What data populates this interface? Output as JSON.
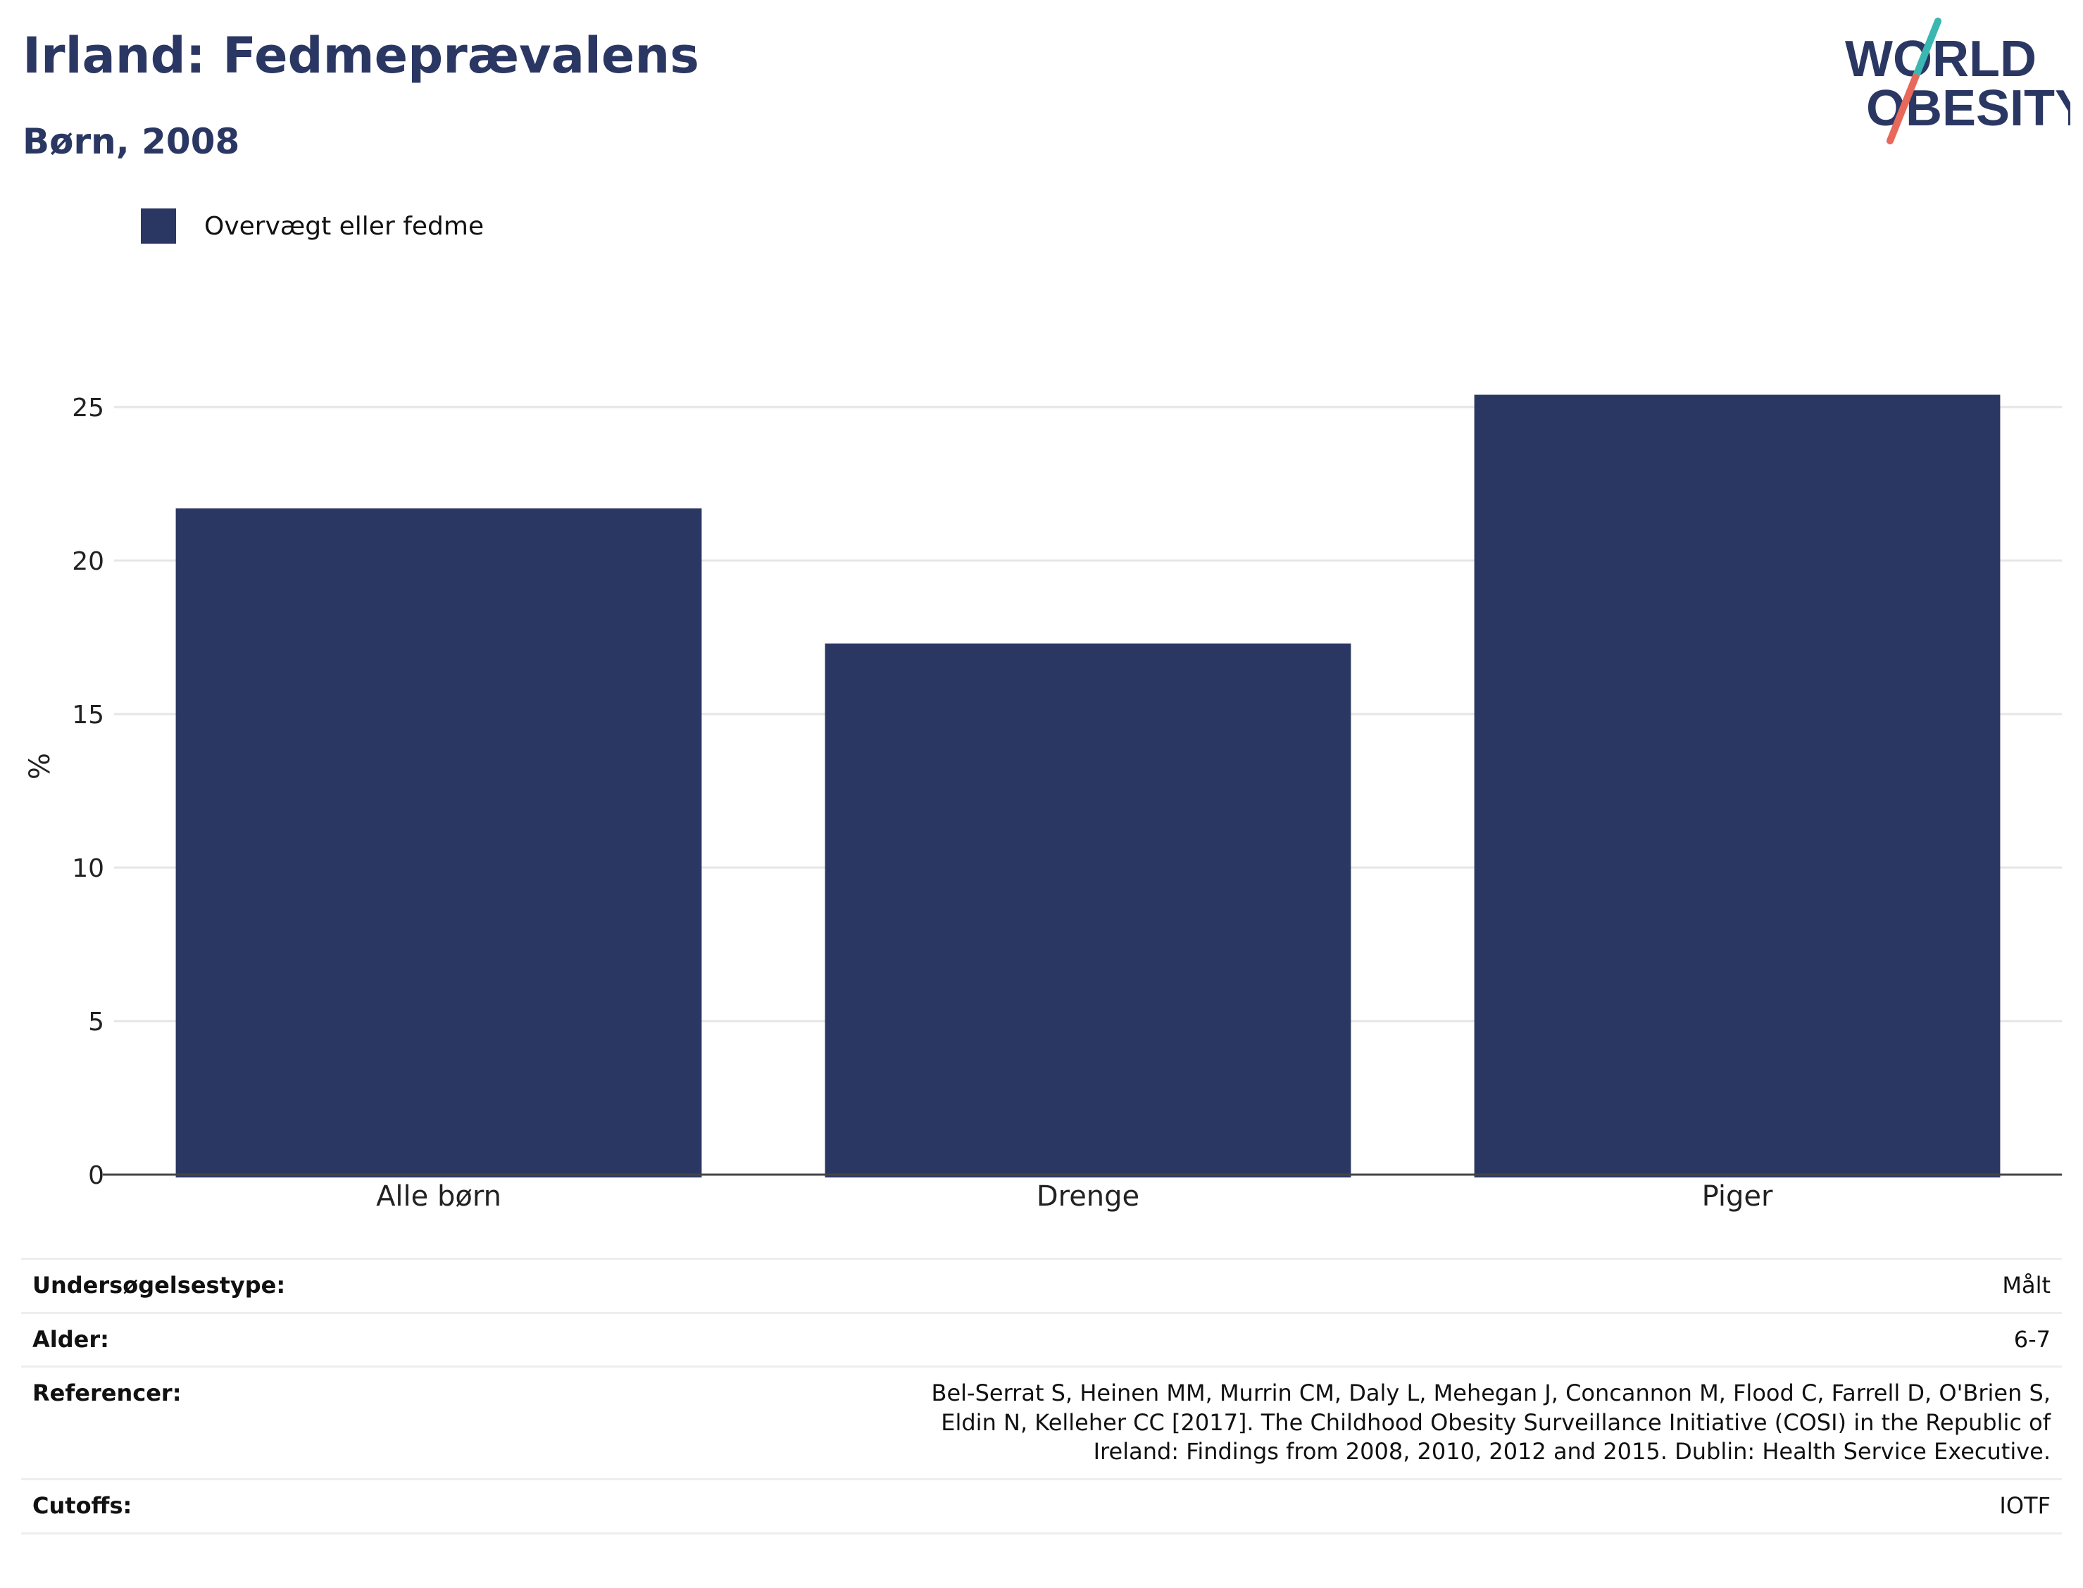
{
  "header": {
    "title": "Irland: Fedmeprævalens",
    "subtitle": "Børn, 2008"
  },
  "logo": {
    "line1": "WORLD",
    "line2": "OBESITY",
    "accent_teal": "#3ab7b0",
    "accent_coral": "#e8685a",
    "text_color": "#2b3763"
  },
  "legend": {
    "label": "Overvægt eller fedme",
    "color": "#2b3763"
  },
  "chart_data": {
    "type": "bar",
    "categories": [
      "Alle børn",
      "Drenge",
      "Piger"
    ],
    "series": [
      {
        "name": "Overvægt eller fedme",
        "values": [
          21.7,
          17.3,
          25.4
        ],
        "color": "#2b3763"
      }
    ],
    "ylabel": "%",
    "ylim": [
      0,
      26.5
    ],
    "yticks": [
      0,
      5,
      10,
      15,
      20,
      25
    ],
    "grid": true,
    "legend_position": "top-left"
  },
  "info": {
    "rows": [
      {
        "key": "Undersøgelsestype:",
        "value": "Målt"
      },
      {
        "key": "Alder:",
        "value": "6-7"
      },
      {
        "key": "Referencer:",
        "value": "Bel-Serrat S, Heinen MM, Murrin CM, Daly L, Mehegan J, Concannon M, Flood C, Farrell D, O'Brien S, Eldin N, Kelleher CC [2017]. The Childhood Obesity Surveillance Initiative (COSI) in the Republic of Ireland: Findings from 2008, 2010, 2012 and 2015. Dublin: Health Service Executive."
      },
      {
        "key": "Cutoffs:",
        "value": "IOTF"
      }
    ]
  }
}
